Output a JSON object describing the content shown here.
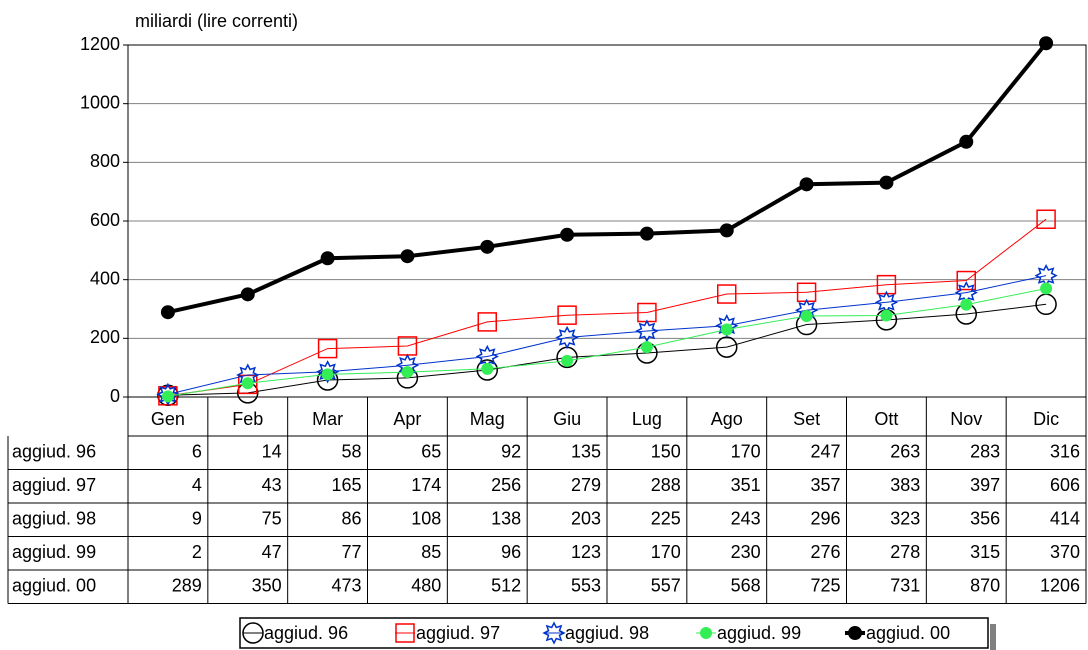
{
  "chart_data": {
    "type": "line",
    "title": "miliardi (lire correnti)",
    "categories": [
      "Gen",
      "Feb",
      "Mar",
      "Apr",
      "Mag",
      "Giu",
      "Lug",
      "Ago",
      "Set",
      "Ott",
      "Nov",
      "Dic"
    ],
    "ylim": [
      0,
      1200
    ],
    "yticks": [
      0,
      200,
      400,
      600,
      800,
      1000,
      1200
    ],
    "grid": true,
    "series": [
      {
        "name": "aggiud. 96",
        "color": "#000000",
        "marker": "open-circle",
        "values": [
          6,
          14,
          58,
          65,
          92,
          135,
          150,
          170,
          247,
          263,
          283,
          316
        ]
      },
      {
        "name": "aggiud. 97",
        "color": "#ff0000",
        "marker": "open-square",
        "values": [
          4,
          43,
          165,
          174,
          256,
          279,
          288,
          351,
          357,
          383,
          397,
          606
        ]
      },
      {
        "name": "aggiud. 98",
        "color": "#0033cc",
        "marker": "star",
        "values": [
          9,
          75,
          86,
          108,
          138,
          203,
          225,
          243,
          296,
          323,
          356,
          414
        ]
      },
      {
        "name": "aggiud. 99",
        "color": "#33ee55",
        "marker": "filled-circle",
        "values": [
          2,
          47,
          77,
          85,
          96,
          123,
          170,
          230,
          276,
          278,
          315,
          370
        ]
      },
      {
        "name": "aggiud. 00",
        "color": "#000000",
        "marker": "filled-circle-thick",
        "values": [
          289,
          350,
          473,
          480,
          512,
          553,
          557,
          568,
          725,
          731,
          870,
          1206
        ]
      }
    ]
  }
}
